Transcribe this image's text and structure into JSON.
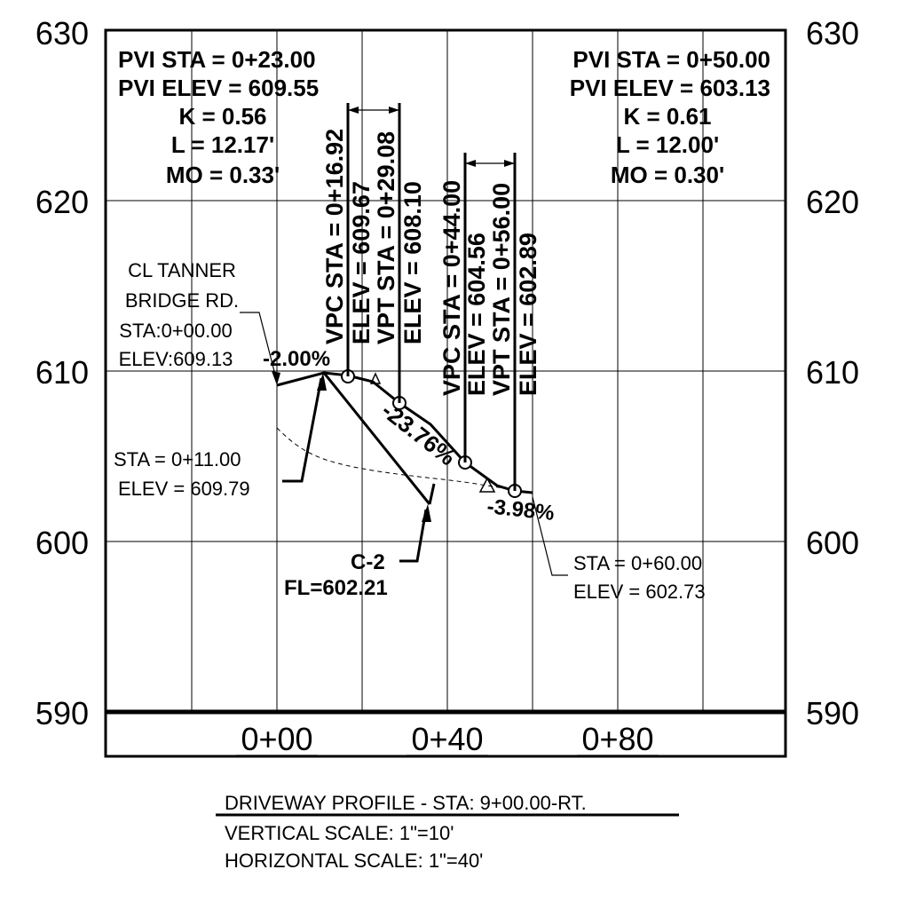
{
  "elevation_axis": {
    "left_labels": [
      "630",
      "620",
      "610",
      "600",
      "590"
    ],
    "right_labels": [
      "630",
      "620",
      "610",
      "600",
      "590"
    ]
  },
  "station_axis": {
    "labels": [
      "0+00",
      "0+40",
      "0+80"
    ]
  },
  "pvi_left": {
    "line1": "PVI STA = 0+23.00",
    "line2": "PVI ELEV = 609.55",
    "line3": "K = 0.56",
    "line4": "L = 12.17'",
    "line5": "MO = 0.33'"
  },
  "pvi_right": {
    "line1": "PVI STA = 0+50.00",
    "line2": "PVI ELEV = 603.13",
    "line3": "K = 0.61",
    "line4": "L = 12.00'",
    "line5": "MO = 0.30'"
  },
  "curve1": {
    "vpc_sta": "VPC STA = 0+16.92",
    "vpc_elev": "ELEV = 609.67",
    "vpt_sta": "VPT STA = 0+29.08",
    "vpt_elev": "ELEV = 608.10"
  },
  "curve2": {
    "vpc_sta": "VPC STA = 0+44.00",
    "vpc_elev": "ELEV = 604.56",
    "vpt_sta": "VPT STA = 0+56.00",
    "vpt_elev": "ELEV = 602.89"
  },
  "start_point": {
    "line1": "CL TANNER",
    "line2": "BRIDGE RD.",
    "line3": "STA:0+00.00",
    "line4": "ELEV:609.13"
  },
  "high_point": {
    "line1": "STA = 0+11.00",
    "line2": "ELEV = 609.79"
  },
  "end_point": {
    "line1": "STA = 0+60.00",
    "line2": "ELEV = 602.73"
  },
  "culvert": {
    "line1": "C-2",
    "line2": "FL=602.21"
  },
  "grades": {
    "g1": "-2.00%",
    "g2": "-23.76%",
    "g3": "-3.98%"
  },
  "caption": {
    "title": "DRIVEWAY PROFILE - STA: 9+00.00-RT.",
    "vertical_scale": "VERTICAL SCALE: 1\"=10'",
    "horizontal_scale": "HORIZONTAL SCALE: 1\"=40'"
  }
}
